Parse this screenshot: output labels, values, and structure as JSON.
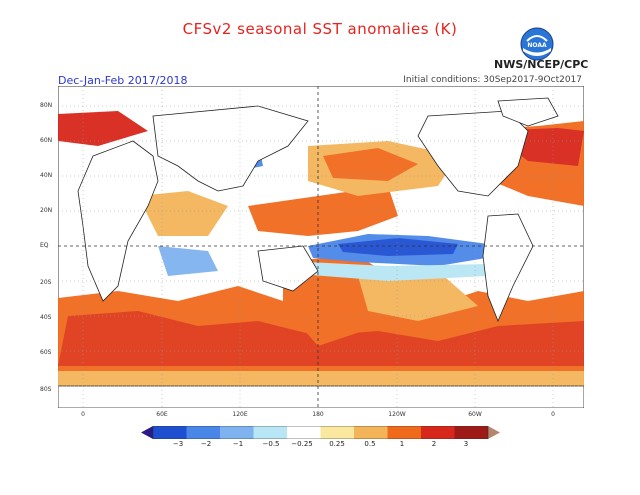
{
  "header": {
    "title": "CFSv2 seasonal SST anomalies (K)",
    "season": "Dec-Jan-Feb 2017/2018",
    "initial_conditions": "Initial conditions: 30Sep2017-9Oct2017",
    "agency": "NWS/NCEP/CPC",
    "logo_text": "NOAA"
  },
  "map": {
    "lat_labels": [
      "80N",
      "60N",
      "40N",
      "20N",
      "EQ",
      "20S",
      "40S",
      "60S",
      "80S"
    ],
    "lon_labels": [
      "0",
      "60E",
      "120E",
      "180",
      "120W",
      "60W",
      "0"
    ]
  },
  "legend": {
    "labels": [
      "−3",
      "−2",
      "−1",
      "−0.5",
      "−0.25",
      "0.25",
      "0.5",
      "1",
      "2",
      "3"
    ],
    "colors": [
      "#2a1a8c",
      "#1f4fd1",
      "#4a86e8",
      "#7fb3f0",
      "#b8e6f5",
      "#ffffff",
      "#fbe8a0",
      "#f4b55a",
      "#f06a1c",
      "#d7261a",
      "#9e1a16",
      "#b5866e"
    ]
  }
}
